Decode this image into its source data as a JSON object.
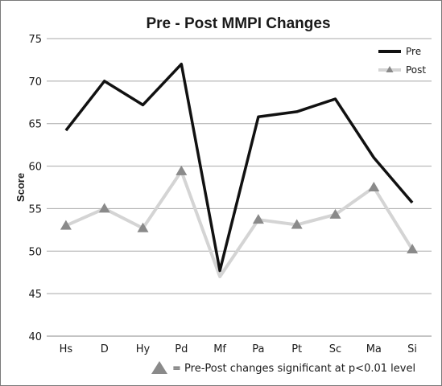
{
  "chart_data": {
    "type": "line",
    "title": "Pre - Post MMPI Changes",
    "xlabel": "",
    "ylabel": "Score",
    "ylim": [
      40,
      75
    ],
    "yticks": [
      40,
      45,
      50,
      55,
      60,
      65,
      70,
      75
    ],
    "categories": [
      "Hs",
      "D",
      "Hy",
      "Pd",
      "Mf",
      "Pa",
      "Pt",
      "Sc",
      "Ma",
      "Si"
    ],
    "grid": true,
    "legend_position": "top-right",
    "series": [
      {
        "name": "Pre",
        "color": "#111111",
        "marker": "none",
        "values": [
          64.2,
          70.0,
          67.2,
          72.0,
          47.7,
          65.8,
          66.4,
          67.9,
          61.0,
          55.7
        ]
      },
      {
        "name": "Post",
        "color": "#d4d4d4",
        "marker": "triangle",
        "marker_color": "#8a8a8a",
        "values": [
          53.0,
          55.0,
          52.7,
          59.4,
          47.0,
          53.7,
          53.1,
          54.3,
          57.5,
          50.2
        ]
      }
    ],
    "significant_categories": [
      "Hs",
      "D",
      "Hy",
      "Pd",
      "Pa",
      "Pt",
      "Sc",
      "Ma",
      "Si"
    ],
    "footnote": "= Pre-Post changes significant at p<0.01 level"
  }
}
